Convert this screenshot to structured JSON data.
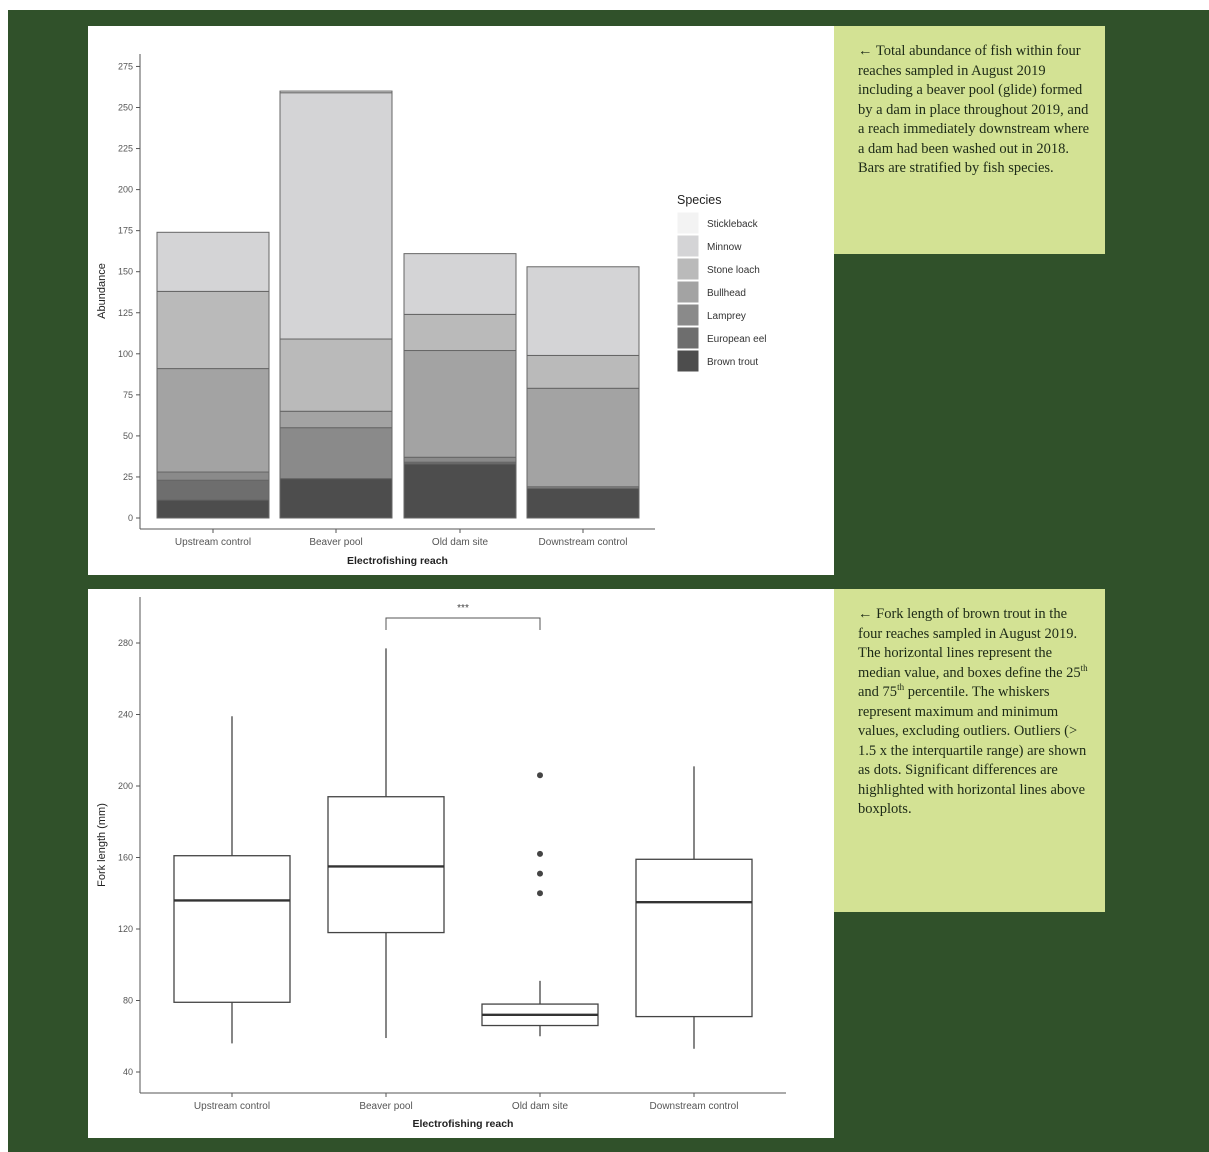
{
  "captions": {
    "abundance": "← Total abundance of fish within four reaches sampled in August 2019 including a beaver pool (glide) formed by a dam in place throughout 2019, and a reach immediately downstream where a dam had been washed out in 2018. Bars are stratified by fish species.",
    "fork_length": {
      "part1": "← Fork length of brown trout in the four reaches sampled in August 2019. The horizontal lines represent the median value, and boxes define the 25",
      "sup1": "th",
      "part2": " and 75",
      "sup2": "th",
      "part3": " percentile. The whiskers represent maximum and minimum values, excluding outliers. Outliers (> 1.5 x the interquartile range) are shown as dots. Significant differences are highlighted with horizontal lines above boxplots."
    }
  },
  "colors": {
    "background": "#30512a",
    "caption_bg": "#d3e294"
  },
  "chart_data": [
    {
      "type": "bar",
      "stacked": true,
      "xlabel": "Electrofishing reach",
      "ylabel": "Abundance",
      "ylim": [
        0,
        280
      ],
      "yticks": [
        0,
        25,
        50,
        75,
        100,
        125,
        150,
        175,
        200,
        225,
        250,
        275
      ],
      "categories": [
        "Upstream control",
        "Beaver pool",
        "Old dam site",
        "Downstream control"
      ],
      "legend_title": "Species",
      "legend_position": "right",
      "series": [
        {
          "name": "Brown trout",
          "color": "#4d4d4d",
          "values": [
            11,
            24,
            33,
            18
          ]
        },
        {
          "name": "European eel",
          "color": "#6e6e6e",
          "values": [
            12,
            0,
            1,
            0
          ]
        },
        {
          "name": "Lamprey",
          "color": "#8a8a8a",
          "values": [
            5,
            31,
            3,
            1
          ]
        },
        {
          "name": "Bullhead",
          "color": "#a3a3a3",
          "values": [
            63,
            10,
            65,
            60
          ]
        },
        {
          "name": "Stone loach",
          "color": "#bababa",
          "values": [
            47,
            44,
            22,
            20
          ]
        },
        {
          "name": "Minnow",
          "color": "#d4d4d6",
          "values": [
            36,
            150,
            37,
            54
          ]
        },
        {
          "name": "Stickleback",
          "color": "#f3f3f3",
          "values": [
            0,
            1,
            0,
            0
          ]
        }
      ]
    },
    {
      "type": "box",
      "xlabel": "Electrofishing reach",
      "ylabel": "Fork length (mm)",
      "ylim": [
        33,
        298
      ],
      "yticks": [
        40,
        80,
        120,
        160,
        200,
        240,
        280
      ],
      "categories": [
        "Upstream control",
        "Beaver pool",
        "Old dam site",
        "Downstream control"
      ],
      "boxes": [
        {
          "min": 56,
          "q1": 79,
          "median": 136,
          "q3": 161,
          "max": 239,
          "outliers": []
        },
        {
          "min": 59,
          "q1": 118,
          "median": 155,
          "q3": 194,
          "max": 277,
          "outliers": []
        },
        {
          "min": 60,
          "q1": 66,
          "median": 72,
          "q3": 78,
          "max": 91,
          "outliers": [
            140,
            151,
            162,
            206
          ]
        },
        {
          "min": 53,
          "q1": 71,
          "median": 135,
          "q3": 159,
          "max": 211,
          "outliers": []
        }
      ],
      "significance": {
        "from": 1,
        "to": 2,
        "label": "***"
      }
    }
  ]
}
